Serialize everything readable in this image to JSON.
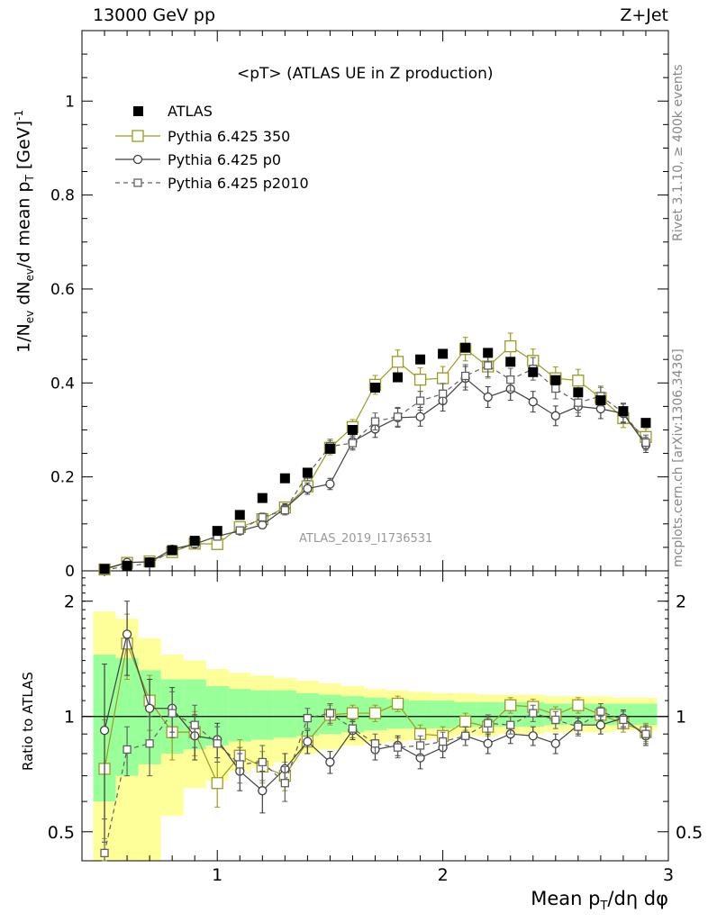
{
  "header": {
    "left": "13000 GeV pp",
    "right": "Z+Jet"
  },
  "side_labels": {
    "upper": "Rivet 3.1.10, ≥ 400k events",
    "lower": "mcplots.cern.ch [arXiv:1306.3436]"
  },
  "main": {
    "title": "<pT> (ATLAS UE in Z production)",
    "watermark": "ATLAS_2019_I1736531",
    "ylabel": "1/N_ev dN_ev/d mean p_T [GeV]^-1"
  },
  "ratio": {
    "ylabel": "Ratio to ATLAS"
  },
  "xlabel": "Mean p_T/dη dφ",
  "legend": {
    "atlas": "ATLAS",
    "p350": "Pythia 6.425 350",
    "p0": "Pythia 6.425 p0",
    "p2010": "Pythia 6.425 p2010"
  },
  "colors": {
    "atlas": "#000000",
    "p350": "#9a9a22",
    "p0": "#404040",
    "p2010": "#606060",
    "band_inner": "#99ff99",
    "band_outer": "#ffff99"
  },
  "chart_data": [
    {
      "type": "scatter",
      "xlim": [
        0.4,
        3.0
      ],
      "ylim": [
        0,
        1.15
      ],
      "x_ticks": [
        1,
        2,
        3
      ],
      "y_ticks": [
        0,
        0.2,
        0.4,
        0.6,
        0.8,
        1
      ],
      "y_tick_labels": [
        "0",
        "0.2",
        "0.4",
        "0.6",
        "0.8",
        "1"
      ],
      "x": [
        0.5,
        0.6,
        0.7,
        0.8,
        0.9,
        1.0,
        1.1,
        1.2,
        1.3,
        1.4,
        1.5,
        1.6,
        1.7,
        1.8,
        1.9,
        2.0,
        2.1,
        2.2,
        2.3,
        2.4,
        2.5,
        2.6,
        2.7,
        2.8,
        2.9
      ],
      "series": [
        {
          "name": "ATLAS",
          "values": [
            0.004,
            0.011,
            0.018,
            0.044,
            0.064,
            0.085,
            0.119,
            0.155,
            0.197,
            0.209,
            0.26,
            0.3,
            0.39,
            0.412,
            0.45,
            0.462,
            0.475,
            0.464,
            0.445,
            0.423,
            0.406,
            0.38,
            0.363,
            0.34,
            0.315
          ]
        },
        {
          "name": "Pythia 6.425 350",
          "values": [
            0.003,
            0.017,
            0.02,
            0.04,
            0.058,
            0.057,
            0.093,
            0.11,
            0.135,
            0.18,
            0.262,
            0.306,
            0.396,
            0.445,
            0.407,
            0.41,
            0.472,
            0.435,
            0.478,
            0.447,
            0.41,
            0.405,
            0.368,
            0.325,
            0.285
          ]
        },
        {
          "name": "Pythia 6.425 p0",
          "values": [
            0.004,
            0.018,
            0.019,
            0.046,
            0.057,
            0.074,
            0.085,
            0.098,
            0.133,
            0.175,
            0.185,
            0.275,
            0.302,
            0.326,
            0.328,
            0.362,
            0.41,
            0.37,
            0.387,
            0.36,
            0.33,
            0.35,
            0.345,
            0.335,
            0.268
          ]
        },
        {
          "name": "Pythia 6.425 p2010",
          "values": [
            0.002,
            0.01,
            0.016,
            0.042,
            0.058,
            0.073,
            0.086,
            0.114,
            0.129,
            0.205,
            0.265,
            0.272,
            0.318,
            0.328,
            0.362,
            0.377,
            0.415,
            0.437,
            0.407,
            0.43,
            0.388,
            0.358,
            0.372,
            0.337,
            0.273
          ]
        }
      ],
      "errors": {
        "Pythia 6.425 350": [
          0.001,
          0.003,
          0.003,
          0.005,
          0.006,
          0.006,
          0.008,
          0.009,
          0.01,
          0.012,
          0.015,
          0.016,
          0.02,
          0.025,
          0.025,
          0.025,
          0.025,
          0.025,
          0.028,
          0.025,
          0.024,
          0.024,
          0.022,
          0.02,
          0.018
        ],
        "Pythia 6.425 p0": [
          0.001,
          0.003,
          0.003,
          0.005,
          0.006,
          0.006,
          0.007,
          0.008,
          0.01,
          0.012,
          0.012,
          0.015,
          0.018,
          0.02,
          0.02,
          0.022,
          0.025,
          0.022,
          0.024,
          0.022,
          0.021,
          0.021,
          0.021,
          0.02,
          0.016
        ],
        "Pythia 6.425 p2010": [
          0.001,
          0.003,
          0.003,
          0.005,
          0.006,
          0.006,
          0.007,
          0.009,
          0.01,
          0.013,
          0.015,
          0.015,
          0.018,
          0.02,
          0.02,
          0.022,
          0.024,
          0.024,
          0.024,
          0.024,
          0.022,
          0.021,
          0.021,
          0.02,
          0.016
        ]
      }
    },
    {
      "type": "scatter",
      "xlim": [
        0.4,
        3.0
      ],
      "ylim": [
        0.42,
        2.4
      ],
      "log_y": true,
      "x_ticks": [
        1,
        2,
        3
      ],
      "x_tick_labels": [
        "1",
        "2",
        "3"
      ],
      "y_ticks": [
        0.5,
        1,
        2
      ],
      "y_tick_labels": [
        "0.5",
        "1",
        "2"
      ],
      "x": [
        0.5,
        0.6,
        0.7,
        0.8,
        0.9,
        1.0,
        1.1,
        1.2,
        1.3,
        1.4,
        1.5,
        1.6,
        1.7,
        1.8,
        1.9,
        2.0,
        2.1,
        2.2,
        2.3,
        2.4,
        2.5,
        2.6,
        2.7,
        2.8,
        2.9
      ],
      "bands": {
        "inner": [
          [
            0.6,
            1.45
          ],
          [
            0.7,
            1.42
          ],
          [
            0.75,
            1.32
          ],
          [
            0.8,
            1.25
          ],
          [
            0.82,
            1.25
          ],
          [
            0.84,
            1.2
          ],
          [
            0.86,
            1.18
          ],
          [
            0.87,
            1.17
          ],
          [
            0.88,
            1.17
          ],
          [
            0.89,
            1.15
          ],
          [
            0.9,
            1.14
          ],
          [
            0.91,
            1.13
          ],
          [
            0.92,
            1.12
          ],
          [
            0.93,
            1.11
          ],
          [
            0.93,
            1.1
          ],
          [
            0.93,
            1.1
          ],
          [
            0.94,
            1.09
          ],
          [
            0.94,
            1.09
          ],
          [
            0.94,
            1.09
          ],
          [
            0.94,
            1.09
          ],
          [
            0.95,
            1.08
          ],
          [
            0.95,
            1.08
          ],
          [
            0.95,
            1.08
          ],
          [
            0.95,
            1.08
          ],
          [
            0.95,
            1.08
          ]
        ],
        "outer": [
          [
            0.42,
            1.88
          ],
          [
            0.42,
            1.8
          ],
          [
            0.42,
            1.6
          ],
          [
            0.55,
            1.45
          ],
          [
            0.65,
            1.4
          ],
          [
            0.68,
            1.33
          ],
          [
            0.72,
            1.3
          ],
          [
            0.74,
            1.28
          ],
          [
            0.76,
            1.26
          ],
          [
            0.8,
            1.24
          ],
          [
            0.82,
            1.22
          ],
          [
            0.84,
            1.2
          ],
          [
            0.85,
            1.18
          ],
          [
            0.86,
            1.17
          ],
          [
            0.87,
            1.16
          ],
          [
            0.88,
            1.15
          ],
          [
            0.89,
            1.15
          ],
          [
            0.89,
            1.14
          ],
          [
            0.9,
            1.14
          ],
          [
            0.9,
            1.14
          ],
          [
            0.91,
            1.13
          ],
          [
            0.91,
            1.13
          ],
          [
            0.91,
            1.13
          ],
          [
            0.92,
            1.12
          ],
          [
            0.92,
            1.12
          ]
        ]
      },
      "series": [
        {
          "name": "Pythia 6.425 350",
          "values": [
            0.73,
            1.55,
            1.1,
            0.91,
            0.91,
            0.67,
            0.79,
            0.74,
            0.7,
            0.86,
            1.01,
            1.02,
            1.02,
            1.08,
            0.9,
            0.89,
            0.97,
            0.94,
            1.07,
            1.06,
            1.01,
            1.07,
            1.01,
            0.96,
            0.91
          ]
        },
        {
          "name": "Pythia 6.425 p0",
          "values": [
            0.92,
            1.64,
            1.05,
            1.05,
            0.89,
            0.87,
            0.72,
            0.64,
            0.73,
            0.86,
            0.76,
            0.92,
            0.82,
            0.84,
            0.78,
            0.83,
            0.89,
            0.85,
            0.9,
            0.89,
            0.85,
            0.95,
            0.95,
            0.99,
            0.89
          ]
        },
        {
          "name": "Pythia 6.425 p2010",
          "values": [
            0.44,
            0.82,
            0.85,
            1.02,
            0.95,
            0.85,
            0.75,
            0.76,
            0.67,
            0.99,
            1.02,
            0.93,
            0.85,
            0.83,
            0.84,
            0.86,
            0.89,
            0.96,
            0.95,
            1.02,
            0.98,
            0.94,
            1.03,
            0.98,
            0.9
          ]
        }
      ],
      "errors": {
        "Pythia 6.425 350": [
          0.25,
          0.3,
          0.18,
          0.14,
          0.12,
          0.09,
          0.08,
          0.07,
          0.06,
          0.06,
          0.06,
          0.05,
          0.05,
          0.05,
          0.05,
          0.05,
          0.05,
          0.05,
          0.05,
          0.05,
          0.05,
          0.05,
          0.05,
          0.05,
          0.05
        ],
        "Pythia 6.425 p0": [
          0.45,
          0.36,
          0.2,
          0.14,
          0.12,
          0.09,
          0.08,
          0.08,
          0.07,
          0.06,
          0.05,
          0.05,
          0.05,
          0.05,
          0.05,
          0.05,
          0.05,
          0.05,
          0.05,
          0.05,
          0.05,
          0.05,
          0.05,
          0.05,
          0.05
        ],
        "Pythia 6.425 p2010": [
          0.1,
          0.12,
          0.15,
          0.14,
          0.12,
          0.09,
          0.08,
          0.08,
          0.07,
          0.06,
          0.06,
          0.05,
          0.05,
          0.05,
          0.05,
          0.05,
          0.05,
          0.05,
          0.05,
          0.05,
          0.05,
          0.05,
          0.05,
          0.05,
          0.05
        ]
      }
    }
  ]
}
